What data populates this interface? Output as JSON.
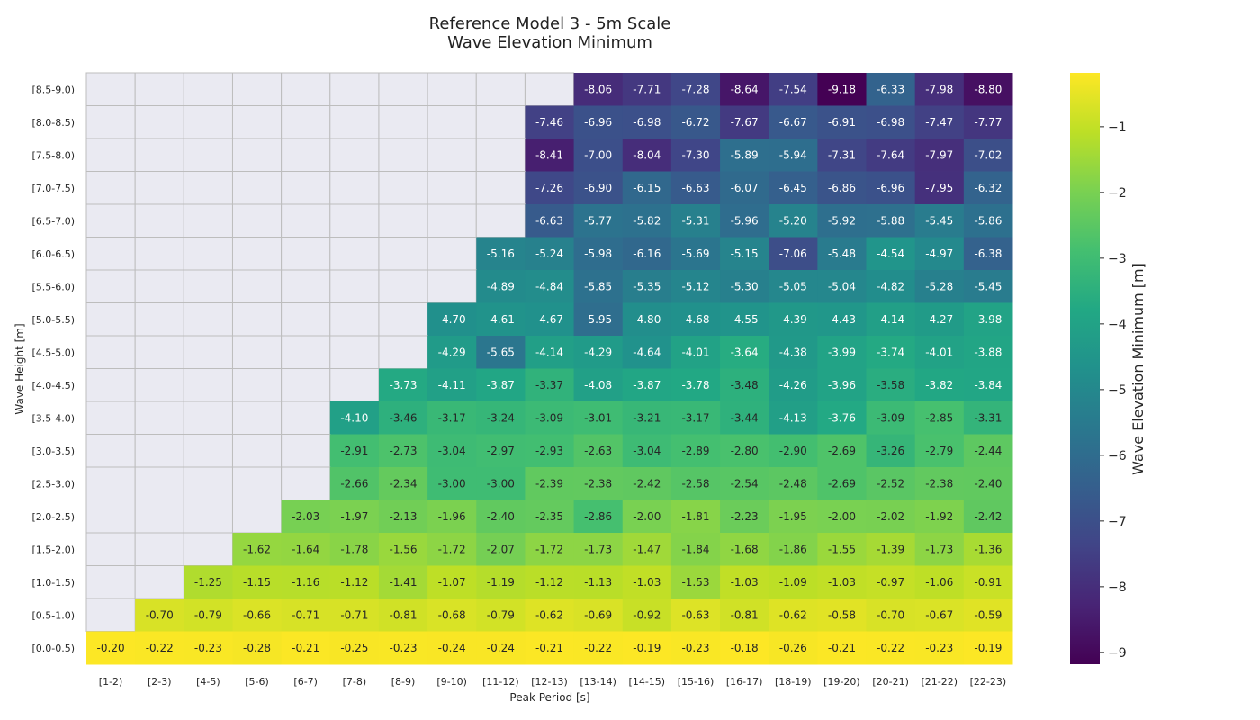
{
  "chart_data": {
    "type": "heatmap",
    "title_line1": "Reference Model 3 - 5m Scale",
    "title_line2": "Wave Elevation Minimum",
    "xlabel": "Peak Period [s]",
    "ylabel": "Wave Height [m]",
    "colorbar_label": "Wave Elevation Minimum [m]",
    "colormap": "viridis",
    "vmin": -9.18,
    "vmax": -0.18,
    "colorbar_ticks": [
      -1,
      -2,
      -3,
      -4,
      -5,
      -6,
      -7,
      -8,
      -9
    ],
    "colorbar_tick_labels": [
      "−1",
      "−2",
      "−3",
      "−4",
      "−5",
      "−6",
      "−7",
      "−8",
      "−9"
    ],
    "missing_color": "#eaeaf2",
    "grid_color": "#bdbdbd",
    "x_categories": [
      "[1-2)",
      "[2-3)",
      "[4-5)",
      "[5-6)",
      "[6-7)",
      "[7-8)",
      "[8-9)",
      "[9-10)",
      "[11-12)",
      "[12-13)",
      "[13-14)",
      "[14-15)",
      "[15-16)",
      "[16-17)",
      "[18-19)",
      "[19-20)",
      "[20-21)",
      "[21-22)",
      "[22-23)"
    ],
    "y_categories": [
      "[8.5-9.0)",
      "[8.0-8.5)",
      "[7.5-8.0)",
      "[7.0-7.5)",
      "[6.5-7.0)",
      "[6.0-6.5)",
      "[5.5-6.0)",
      "[5.0-5.5)",
      "[4.5-5.0)",
      "[4.0-4.5)",
      "[3.5-4.0)",
      "[3.0-3.5)",
      "[2.5-3.0)",
      "[2.0-2.5)",
      "[1.5-2.0)",
      "[1.0-1.5)",
      "[0.5-1.0)",
      "[0.0-0.5)"
    ],
    "values": [
      [
        null,
        null,
        null,
        null,
        null,
        null,
        null,
        null,
        null,
        null,
        -8.06,
        -7.71,
        -7.28,
        -8.64,
        -7.54,
        -9.18,
        -6.33,
        -7.98,
        -8.8
      ],
      [
        null,
        null,
        null,
        null,
        null,
        null,
        null,
        null,
        null,
        -7.46,
        -6.96,
        -6.98,
        -6.72,
        -7.67,
        -6.67,
        -6.91,
        -6.98,
        -7.47,
        -7.77
      ],
      [
        null,
        null,
        null,
        null,
        null,
        null,
        null,
        null,
        null,
        -8.41,
        -7.0,
        -8.04,
        -7.3,
        -5.89,
        -5.94,
        -7.31,
        -7.64,
        -7.97,
        -7.02
      ],
      [
        null,
        null,
        null,
        null,
        null,
        null,
        null,
        null,
        null,
        -7.26,
        -6.9,
        -6.15,
        -6.63,
        -6.07,
        -6.45,
        -6.86,
        -6.96,
        -7.95,
        -6.32
      ],
      [
        null,
        null,
        null,
        null,
        null,
        null,
        null,
        null,
        null,
        -6.63,
        -5.77,
        -5.82,
        -5.31,
        -5.96,
        -5.2,
        -5.92,
        -5.88,
        -5.45,
        -5.86
      ],
      [
        null,
        null,
        null,
        null,
        null,
        null,
        null,
        null,
        -5.16,
        -5.24,
        -5.98,
        -6.16,
        -5.69,
        -5.15,
        -7.06,
        -5.48,
        -4.54,
        -4.97,
        -6.38
      ],
      [
        null,
        null,
        null,
        null,
        null,
        null,
        null,
        null,
        -4.89,
        -4.84,
        -5.85,
        -5.35,
        -5.12,
        -5.3,
        -5.05,
        -5.04,
        -4.82,
        -5.28,
        -5.45
      ],
      [
        null,
        null,
        null,
        null,
        null,
        null,
        null,
        -4.7,
        -4.61,
        -4.67,
        -5.95,
        -4.8,
        -4.68,
        -4.55,
        -4.39,
        -4.43,
        -4.14,
        -4.27,
        -3.98
      ],
      [
        null,
        null,
        null,
        null,
        null,
        null,
        null,
        -4.29,
        -5.65,
        -4.14,
        -4.29,
        -4.64,
        -4.01,
        -3.64,
        -4.38,
        -3.99,
        -3.74,
        -4.01,
        -3.88
      ],
      [
        null,
        null,
        null,
        null,
        null,
        null,
        -3.73,
        -4.11,
        -3.87,
        -3.37,
        -4.08,
        -3.87,
        -3.78,
        -3.48,
        -4.26,
        -3.96,
        -3.58,
        -3.82,
        -3.84
      ],
      [
        null,
        null,
        null,
        null,
        null,
        -4.1,
        -3.46,
        -3.17,
        -3.24,
        -3.09,
        -3.01,
        -3.21,
        -3.17,
        -3.44,
        -4.13,
        -3.76,
        -3.09,
        -2.85,
        -3.31
      ],
      [
        null,
        null,
        null,
        null,
        null,
        -2.91,
        -2.73,
        -3.04,
        -2.97,
        -2.93,
        -2.63,
        -3.04,
        -2.89,
        -2.8,
        -2.9,
        -2.69,
        -3.26,
        -2.79,
        -2.44
      ],
      [
        null,
        null,
        null,
        null,
        null,
        -2.66,
        -2.34,
        -3.0,
        -3.0,
        -2.39,
        -2.38,
        -2.42,
        -2.58,
        -2.54,
        -2.48,
        -2.69,
        -2.52,
        -2.38,
        -2.4
      ],
      [
        null,
        null,
        null,
        null,
        -2.03,
        -1.97,
        -2.13,
        -1.96,
        -2.4,
        -2.35,
        -2.86,
        -2.0,
        -1.81,
        -2.23,
        -1.95,
        -2.0,
        -2.02,
        -1.92,
        -2.42
      ],
      [
        null,
        null,
        null,
        -1.62,
        -1.64,
        -1.78,
        -1.56,
        -1.72,
        -2.07,
        -1.72,
        -1.73,
        -1.47,
        -1.84,
        -1.68,
        -1.86,
        -1.55,
        -1.39,
        -1.73,
        -1.36
      ],
      [
        null,
        null,
        -1.25,
        -1.15,
        -1.16,
        -1.12,
        -1.41,
        -1.07,
        -1.19,
        -1.12,
        -1.13,
        -1.03,
        -1.53,
        -1.03,
        -1.09,
        -1.03,
        -0.97,
        -1.06,
        -0.91
      ],
      [
        null,
        -0.7,
        -0.79,
        -0.66,
        -0.71,
        -0.71,
        -0.81,
        -0.68,
        -0.79,
        -0.62,
        -0.69,
        -0.92,
        -0.63,
        -0.81,
        -0.62,
        -0.58,
        -0.7,
        -0.67,
        -0.59
      ],
      [
        -0.2,
        -0.22,
        -0.23,
        -0.28,
        -0.21,
        -0.25,
        -0.23,
        -0.24,
        -0.24,
        -0.21,
        -0.22,
        -0.19,
        -0.23,
        -0.18,
        -0.26,
        -0.21,
        -0.22,
        -0.23,
        -0.19
      ]
    ]
  }
}
